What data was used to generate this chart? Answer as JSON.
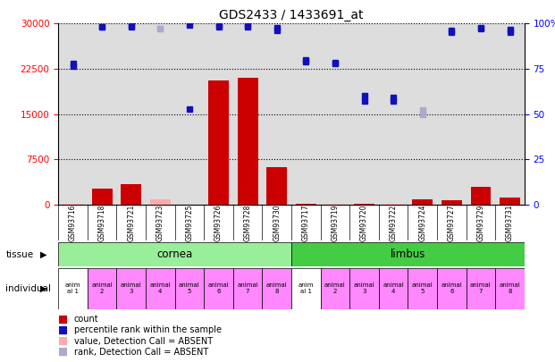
{
  "title": "GDS2433 / 1433691_at",
  "samples": [
    "GSM93716",
    "GSM93718",
    "GSM93721",
    "GSM93723",
    "GSM93725",
    "GSM93726",
    "GSM93728",
    "GSM93730",
    "GSM93717",
    "GSM93719",
    "GSM93720",
    "GSM93722",
    "GSM93724",
    "GSM93727",
    "GSM93729",
    "GSM93731"
  ],
  "count_values": [
    100,
    2700,
    3400,
    800,
    0,
    20500,
    21000,
    6200,
    100,
    150,
    100,
    100,
    800,
    700,
    2900,
    1200
  ],
  "count_absent": [
    true,
    false,
    false,
    true,
    false,
    false,
    false,
    false,
    false,
    true,
    false,
    true,
    false,
    false,
    false,
    false
  ],
  "percentile_values": [
    23000,
    29500,
    29700,
    29200,
    29700,
    29700,
    29700,
    29300,
    24000,
    23500,
    18000,
    17700,
    15700,
    28800,
    29300,
    29000
  ],
  "percentile_absent": [
    false,
    false,
    false,
    true,
    false,
    false,
    false,
    false,
    false,
    false,
    false,
    false,
    true,
    false,
    false,
    false
  ],
  "rank_values": [
    78,
    98,
    98,
    97,
    53,
    98,
    98,
    96,
    79,
    78,
    57,
    57,
    50,
    95,
    97,
    95
  ],
  "rank_absent": [
    false,
    false,
    false,
    true,
    false,
    false,
    false,
    false,
    false,
    false,
    false,
    false,
    true,
    false,
    false,
    false
  ],
  "ylim_left": [
    0,
    30000
  ],
  "ylim_right": [
    0,
    100
  ],
  "yticks_left": [
    0,
    7500,
    15000,
    22500,
    30000
  ],
  "yticks_right": [
    0,
    25,
    50,
    75,
    100
  ],
  "bar_color_present": "#cc0000",
  "bar_color_absent": "#ffaaaa",
  "dot_blue_dark": "#1111bb",
  "dot_blue_light": "#aaaacc",
  "individual_colors": [
    "#ffffff",
    "#ff88ff",
    "#ff88ff",
    "#ff88ff",
    "#ff88ff",
    "#ff88ff",
    "#ff88ff",
    "#ff88ff",
    "#ffffff",
    "#ff88ff",
    "#ff88ff",
    "#ff88ff",
    "#ff88ff",
    "#ff88ff",
    "#ff88ff",
    "#ff88ff"
  ],
  "individual_labels": [
    "anim\nal 1",
    "animal\n2",
    "animal\n3",
    "animal\n4",
    "animal\n5",
    "animal\n6",
    "animal\n7",
    "animal\n8",
    "anim\nal 1",
    "animal\n2",
    "animal\n3",
    "animal\n4",
    "animal\n5",
    "animal\n6",
    "animal\n7",
    "animal\n8"
  ],
  "cornea_color": "#99ee99",
  "limbus_color": "#44cc44",
  "legend_items": [
    {
      "color": "#cc0000",
      "label": "count"
    },
    {
      "color": "#1111bb",
      "label": "percentile rank within the sample"
    },
    {
      "color": "#ffaaaa",
      "label": "value, Detection Call = ABSENT"
    },
    {
      "color": "#aaaacc",
      "label": "rank, Detection Call = ABSENT"
    }
  ],
  "background_color": "#ffffff",
  "plot_bg_color": "#dddddd"
}
